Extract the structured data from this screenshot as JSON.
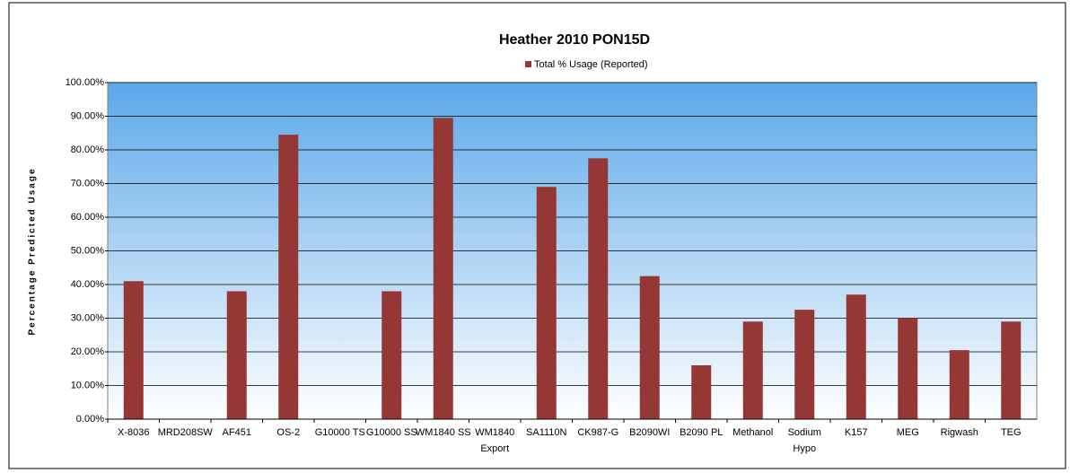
{
  "chart_data": {
    "type": "bar",
    "title": "Heather 2010 PON15D",
    "ylabel": "Percentage Predicted Usage",
    "categories": [
      "X-8036",
      "MRD208SW",
      "AF451",
      "OS-2",
      "G10000 TS",
      "G10000 SS",
      "WM1840 SS",
      "WM1840\nExport",
      "SA1110N",
      "CK987-G",
      "B2090WI",
      "B2090 PL",
      "Methanol",
      "Sodium\nHypo",
      "K157",
      "MEG",
      "Rigwash",
      "TEG"
    ],
    "series": [
      {
        "name": "Total % Usage (Reported)",
        "color": "#953735",
        "values": [
          41,
          0,
          38,
          84.5,
          0,
          38,
          89.5,
          0,
          69,
          77.5,
          42.5,
          16,
          29,
          32.5,
          37,
          30,
          20.5,
          29
        ]
      }
    ],
    "ylim": [
      0,
      100
    ],
    "yticks": [
      {
        "value": 0,
        "label": "0.00%"
      },
      {
        "value": 10,
        "label": "10.00%"
      },
      {
        "value": 20,
        "label": "20.00%"
      },
      {
        "value": 30,
        "label": "30.00%"
      },
      {
        "value": 40,
        "label": "40.00%"
      },
      {
        "value": 50,
        "label": "50.00%"
      },
      {
        "value": 60,
        "label": "60.00%"
      },
      {
        "value": 70,
        "label": "70.00%"
      },
      {
        "value": 80,
        "label": "80.00%"
      },
      {
        "value": 90,
        "label": "90.00%"
      },
      {
        "value": 100,
        "label": "100.00%"
      }
    ],
    "grid": true,
    "legend": "top"
  }
}
